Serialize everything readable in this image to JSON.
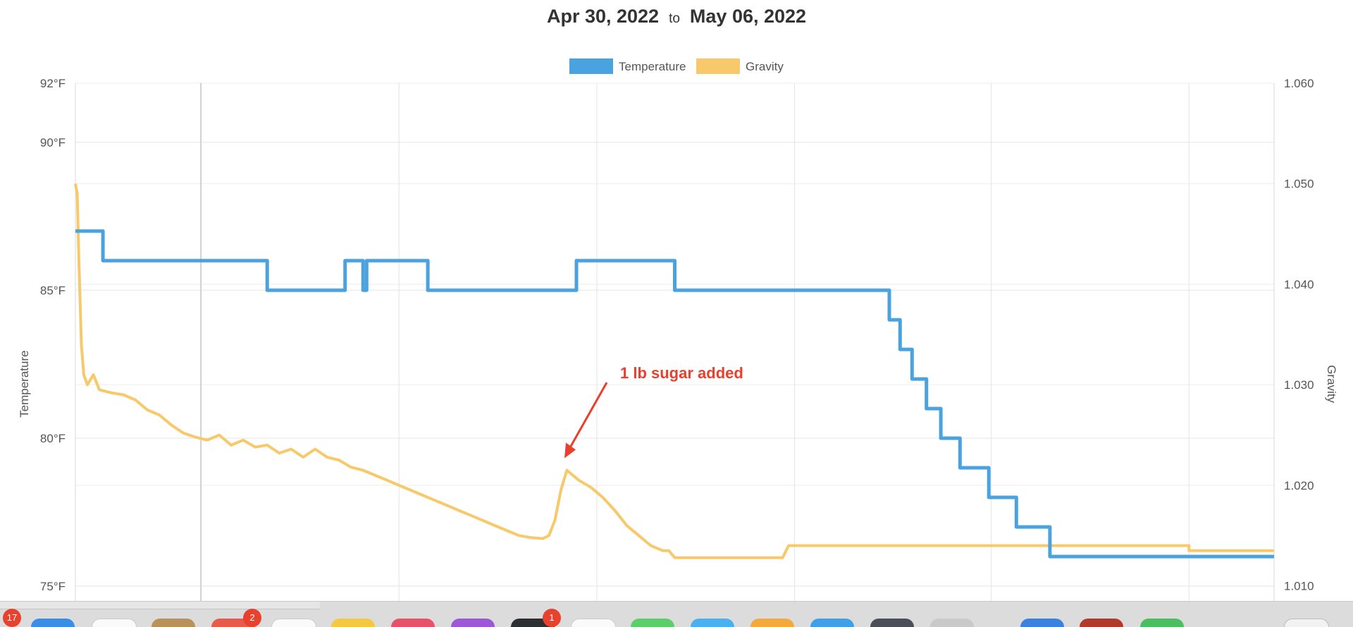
{
  "header": {
    "from_date": "Apr 30, 2022",
    "separator": "to",
    "to_date": "May 06, 2022"
  },
  "chart_data": {
    "type": "line",
    "title": "",
    "xlabel": "",
    "ylabel": "Temperature",
    "y2label": "Gravity",
    "ylim": [
      74.5,
      92
    ],
    "y2lim": [
      1.0085,
      1.06
    ],
    "yticks": [
      "92°F",
      "90°F",
      "85°F",
      "80°F",
      "75°F"
    ],
    "y2ticks": [
      "1.060",
      "1.050",
      "1.040",
      "1.030",
      "1.020",
      "1.010"
    ],
    "x_range": [
      0,
      100
    ],
    "x_gridlines": [
      10.5,
      27,
      43.5,
      60,
      76.4,
      92.9
    ],
    "grid": true,
    "legend_position": "top",
    "annotation": {
      "text": "1 lb sugar added",
      "points_to_x": 40.8,
      "points_to_y": 1.0227
    },
    "series": [
      {
        "name": "Temperature",
        "axis": "left",
        "color": "#4aa3df",
        "points": [
          [
            0,
            87
          ],
          [
            2.3,
            87
          ],
          [
            2.3,
            86
          ],
          [
            16,
            86
          ],
          [
            16,
            85
          ],
          [
            22.5,
            85
          ],
          [
            22.5,
            86
          ],
          [
            24,
            86
          ],
          [
            24,
            85
          ],
          [
            24.3,
            85
          ],
          [
            24.3,
            86
          ],
          [
            29.4,
            86
          ],
          [
            29.4,
            85
          ],
          [
            41.8,
            85
          ],
          [
            41.8,
            86
          ],
          [
            50,
            86
          ],
          [
            50,
            85
          ],
          [
            67.9,
            85
          ],
          [
            67.9,
            84
          ],
          [
            68.8,
            84
          ],
          [
            68.8,
            83
          ],
          [
            69.8,
            83
          ],
          [
            69.8,
            82
          ],
          [
            71,
            82
          ],
          [
            71,
            81
          ],
          [
            72.2,
            81
          ],
          [
            72.2,
            80
          ],
          [
            73.8,
            80
          ],
          [
            73.8,
            79
          ],
          [
            76.2,
            79
          ],
          [
            76.2,
            78
          ],
          [
            78.5,
            78
          ],
          [
            78.5,
            77
          ],
          [
            81.3,
            77
          ],
          [
            81.3,
            76
          ],
          [
            100,
            76
          ]
        ]
      },
      {
        "name": "Gravity",
        "axis": "right",
        "color": "#f7c96b",
        "points": [
          [
            0,
            1.05
          ],
          [
            0.15,
            1.049
          ],
          [
            0.3,
            1.042
          ],
          [
            0.5,
            1.034
          ],
          [
            0.7,
            1.031
          ],
          [
            1,
            1.03
          ],
          [
            1.5,
            1.031
          ],
          [
            2,
            1.0295
          ],
          [
            3,
            1.0292
          ],
          [
            4,
            1.029
          ],
          [
            5,
            1.0285
          ],
          [
            6,
            1.0275
          ],
          [
            7,
            1.027
          ],
          [
            8,
            1.026
          ],
          [
            9,
            1.0252
          ],
          [
            10,
            1.0248
          ],
          [
            11,
            1.0245
          ],
          [
            12,
            1.025
          ],
          [
            13,
            1.024
          ],
          [
            14,
            1.0245
          ],
          [
            15,
            1.0238
          ],
          [
            16,
            1.024
          ],
          [
            17,
            1.0232
          ],
          [
            18,
            1.0236
          ],
          [
            19,
            1.0228
          ],
          [
            20,
            1.0236
          ],
          [
            21,
            1.0228
          ],
          [
            22,
            1.0225
          ],
          [
            23,
            1.0218
          ],
          [
            24,
            1.0215
          ],
          [
            25,
            1.021
          ],
          [
            26,
            1.0205
          ],
          [
            27,
            1.02
          ],
          [
            28,
            1.0195
          ],
          [
            29,
            1.019
          ],
          [
            30,
            1.0185
          ],
          [
            31,
            1.018
          ],
          [
            32,
            1.0175
          ],
          [
            33,
            1.017
          ],
          [
            34,
            1.0165
          ],
          [
            35,
            1.016
          ],
          [
            36,
            1.0155
          ],
          [
            37,
            1.015
          ],
          [
            38,
            1.0148
          ],
          [
            39,
            1.0147
          ],
          [
            39.5,
            1.015
          ],
          [
            40,
            1.0165
          ],
          [
            40.5,
            1.0195
          ],
          [
            41,
            1.0215
          ],
          [
            41.5,
            1.021
          ],
          [
            42,
            1.0205
          ],
          [
            43,
            1.0198
          ],
          [
            44,
            1.0188
          ],
          [
            45,
            1.0175
          ],
          [
            46,
            1.016
          ],
          [
            47,
            1.015
          ],
          [
            48,
            1.014
          ],
          [
            49,
            1.0135
          ],
          [
            49.5,
            1.0135
          ],
          [
            50,
            1.0128
          ],
          [
            53,
            1.0128
          ],
          [
            57,
            1.0128
          ],
          [
            59,
            1.0128
          ],
          [
            59.5,
            1.014
          ],
          [
            65,
            1.014
          ],
          [
            70,
            1.014
          ],
          [
            75,
            1.014
          ],
          [
            80,
            1.014
          ],
          [
            85,
            1.014
          ],
          [
            90,
            1.014
          ],
          [
            92.9,
            1.014
          ],
          [
            92.9,
            1.0135
          ],
          [
            96,
            1.0135
          ],
          [
            100,
            1.0135
          ]
        ]
      }
    ]
  },
  "dock": {
    "badges": [
      "17",
      "2",
      "1"
    ]
  }
}
